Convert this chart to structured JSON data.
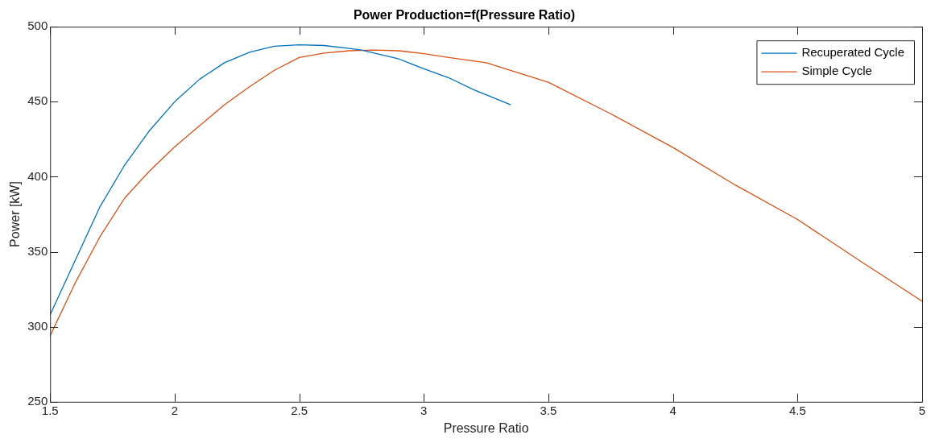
{
  "chart_data": {
    "type": "line",
    "title": "Power Production=f(Pressure Ratio)",
    "xlabel": "Pressure Ratio",
    "ylabel": "Power [kW]",
    "xlim": [
      1.5,
      5
    ],
    "xticks": [
      1.5,
      2,
      2.5,
      3,
      3.5,
      4,
      4.5,
      5
    ],
    "ylim": [
      250,
      500
    ],
    "yticks": [
      250,
      300,
      350,
      400,
      450,
      500
    ],
    "grid": false,
    "legend": "top right",
    "marker": "none",
    "line_style": "solid",
    "series": [
      {
        "name": "Recuperated Cycle",
        "color": "#0072bd",
        "x": [
          1.5,
          1.6,
          1.7,
          1.8,
          1.9,
          2.0,
          2.1,
          2.2,
          2.3,
          2.4,
          2.5,
          2.6,
          2.7,
          2.75,
          2.8,
          2.9,
          3.0,
          3.1,
          3.2,
          3.349
        ],
        "values": [
          308,
          344,
          380,
          408,
          431,
          450,
          465,
          476,
          483,
          487,
          488,
          487.5,
          485.5,
          484.5,
          482.5,
          478.5,
          472,
          466,
          458,
          448
        ]
      },
      {
        "name": "Simple Cycle",
        "color": "#d95319",
        "x": [
          1.5,
          1.6,
          1.7,
          1.8,
          1.9,
          2.0,
          2.1,
          2.2,
          2.3,
          2.4,
          2.5,
          2.6,
          2.7,
          2.8,
          2.9,
          3.0,
          3.1,
          3.25,
          3.5,
          3.75,
          4.0,
          4.25,
          4.5,
          4.75,
          5.0
        ],
        "values": [
          294,
          329,
          360,
          386,
          404,
          420,
          434,
          448,
          460,
          471,
          479.5,
          482.5,
          484,
          484.5,
          484,
          482,
          479.5,
          476,
          463,
          442,
          419.5,
          394.5,
          371.5,
          344,
          317
        ]
      }
    ]
  }
}
